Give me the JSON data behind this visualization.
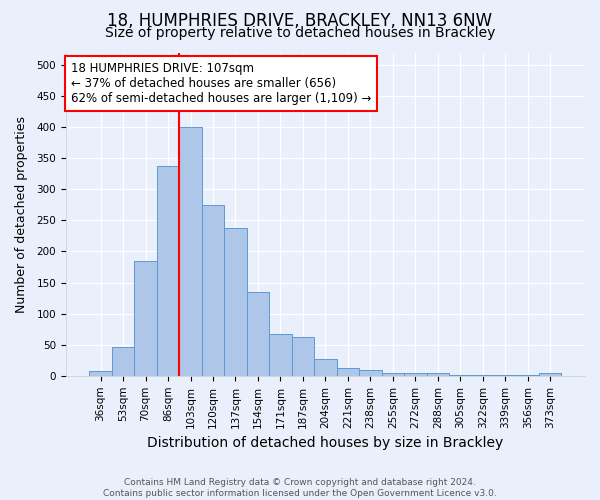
{
  "title": "18, HUMPHRIES DRIVE, BRACKLEY, NN13 6NW",
  "subtitle": "Size of property relative to detached houses in Brackley",
  "xlabel": "Distribution of detached houses by size in Brackley",
  "ylabel": "Number of detached properties",
  "categories": [
    "36sqm",
    "53sqm",
    "70sqm",
    "86sqm",
    "103sqm",
    "120sqm",
    "137sqm",
    "154sqm",
    "171sqm",
    "187sqm",
    "204sqm",
    "221sqm",
    "238sqm",
    "255sqm",
    "272sqm",
    "288sqm",
    "305sqm",
    "322sqm",
    "339sqm",
    "356sqm",
    "373sqm"
  ],
  "values": [
    8,
    47,
    185,
    338,
    400,
    275,
    238,
    135,
    68,
    63,
    27,
    13,
    10,
    5,
    4,
    4,
    2,
    1,
    1,
    1,
    4
  ],
  "bar_color": "#aec6e8",
  "bar_edge_color": "#5b9bd5",
  "vline_x_index": 4,
  "vline_color": "red",
  "annotation_line1": "18 HUMPHRIES DRIVE: 107sqm",
  "annotation_line2": "← 37% of detached houses are smaller (656)",
  "annotation_line3": "62% of semi-detached houses are larger (1,109) →",
  "annotation_box_color": "white",
  "annotation_box_edge_color": "red",
  "ylim": [
    0,
    520
  ],
  "yticks": [
    0,
    50,
    100,
    150,
    200,
    250,
    300,
    350,
    400,
    450,
    500
  ],
  "background_color": "#eaf0fb",
  "grid_color": "#ffffff",
  "footnote_line1": "Contains HM Land Registry data © Crown copyright and database right 2024.",
  "footnote_line2": "Contains public sector information licensed under the Open Government Licence v3.0.",
  "title_fontsize": 12,
  "subtitle_fontsize": 10,
  "xlabel_fontsize": 10,
  "ylabel_fontsize": 9,
  "tick_fontsize": 7.5,
  "annot_fontsize": 8.5,
  "footnote_fontsize": 6.5
}
